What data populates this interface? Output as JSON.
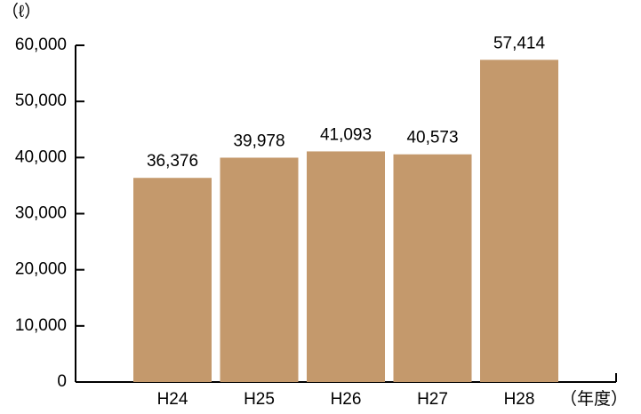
{
  "chart_data": {
    "type": "bar",
    "y_label": "（ℓ）",
    "x_label": "（年度）",
    "categories": [
      "H24",
      "H25",
      "H26",
      "H27",
      "H28"
    ],
    "values": [
      36376,
      39978,
      41093,
      40573,
      57414
    ],
    "value_labels": [
      "36,376",
      "39,978",
      "41,093",
      "40,573",
      "57,414"
    ],
    "color": "#c4996c",
    "ylim": [
      0,
      60000
    ],
    "yticks": [
      0,
      {
        "value": 10000,
        "label": "10,000"
      },
      {
        "value": 20000,
        "label": "20,000"
      },
      {
        "value": 30000,
        "label": "30,000"
      },
      {
        "value": 40000,
        "label": "40,000"
      },
      {
        "value": 50000,
        "label": "50,000"
      },
      {
        "value": 60000,
        "label": "60,000"
      }
    ]
  }
}
